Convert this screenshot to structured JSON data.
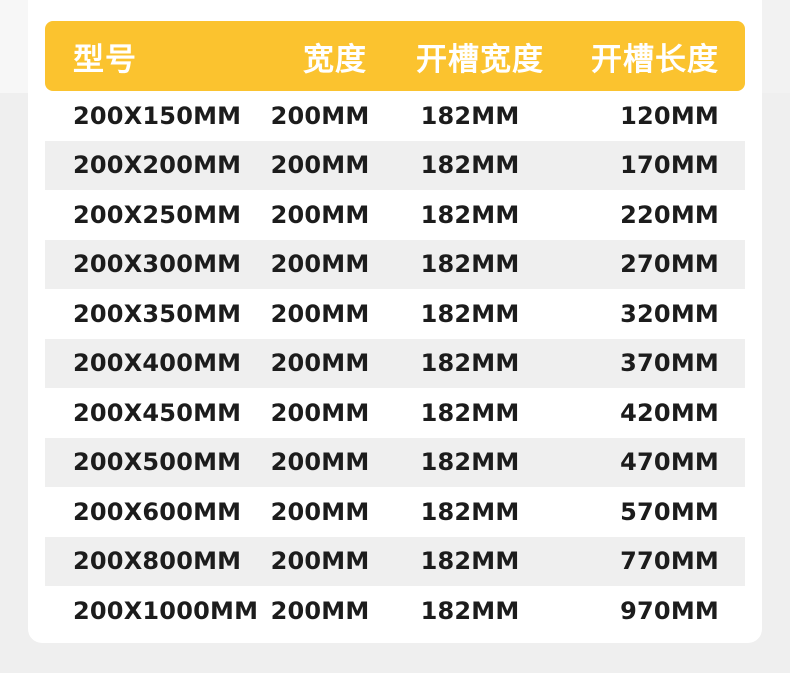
{
  "table": {
    "headers": [
      "型号",
      "宽度",
      "开槽宽度",
      "开槽长度"
    ],
    "rows": [
      [
        "200X150MM",
        "200MM",
        "182MM",
        "120MM"
      ],
      [
        "200X200MM",
        "200MM",
        "182MM",
        "170MM"
      ],
      [
        "200X250MM",
        "200MM",
        "182MM",
        "220MM"
      ],
      [
        "200X300MM",
        "200MM",
        "182MM",
        "270MM"
      ],
      [
        "200X350MM",
        "200MM",
        "182MM",
        "320MM"
      ],
      [
        "200X400MM",
        "200MM",
        "182MM",
        "370MM"
      ],
      [
        "200X450MM",
        "200MM",
        "182MM",
        "420MM"
      ],
      [
        "200X500MM",
        "200MM",
        "182MM",
        "470MM"
      ],
      [
        "200X600MM",
        "200MM",
        "182MM",
        "570MM"
      ],
      [
        "200X800MM",
        "200MM",
        "182MM",
        "770MM"
      ],
      [
        "200X1000MM",
        "200MM",
        "182MM",
        "970MM"
      ]
    ]
  },
  "colors": {
    "header_bg": "#fbc32f",
    "header_text": "#ffffff",
    "row_alt_bg": "#efefef",
    "cell_text": "#1c1c1c"
  }
}
